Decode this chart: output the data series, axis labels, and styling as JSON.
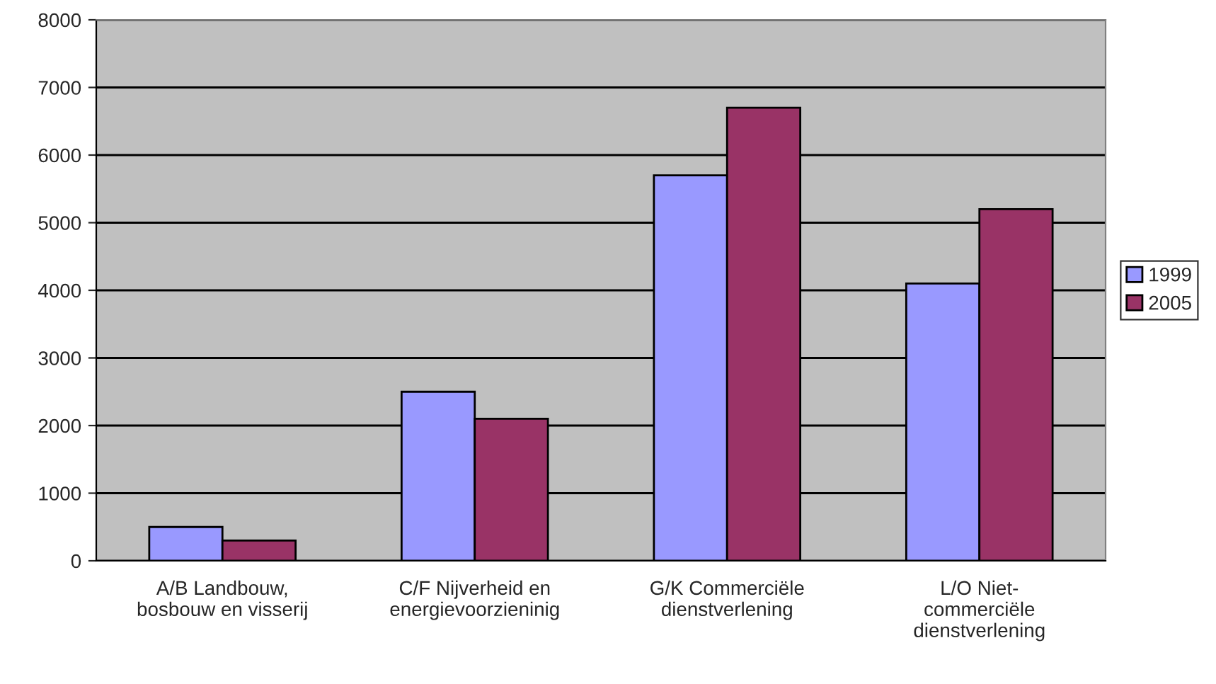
{
  "chart_data": {
    "type": "bar",
    "categories": [
      "A/B Landbouw,\nbosbouw en visserij",
      "C/F Nijverheid en\nenergievoorzieninig",
      "G/K Commerciële\ndienstverlening",
      "L/O Niet-\ncommerciële\ndienstverlening"
    ],
    "series": [
      {
        "name": "1999",
        "color": "#9999ff",
        "values": [
          500,
          2500,
          5700,
          4100
        ]
      },
      {
        "name": "2005",
        "color": "#993366",
        "values": [
          300,
          2100,
          6700,
          5200
        ]
      }
    ],
    "ylim": [
      0,
      8000
    ],
    "yticks": [
      0,
      1000,
      2000,
      3000,
      4000,
      5000,
      6000,
      7000,
      8000
    ],
    "grid": "y",
    "legend": "right"
  }
}
